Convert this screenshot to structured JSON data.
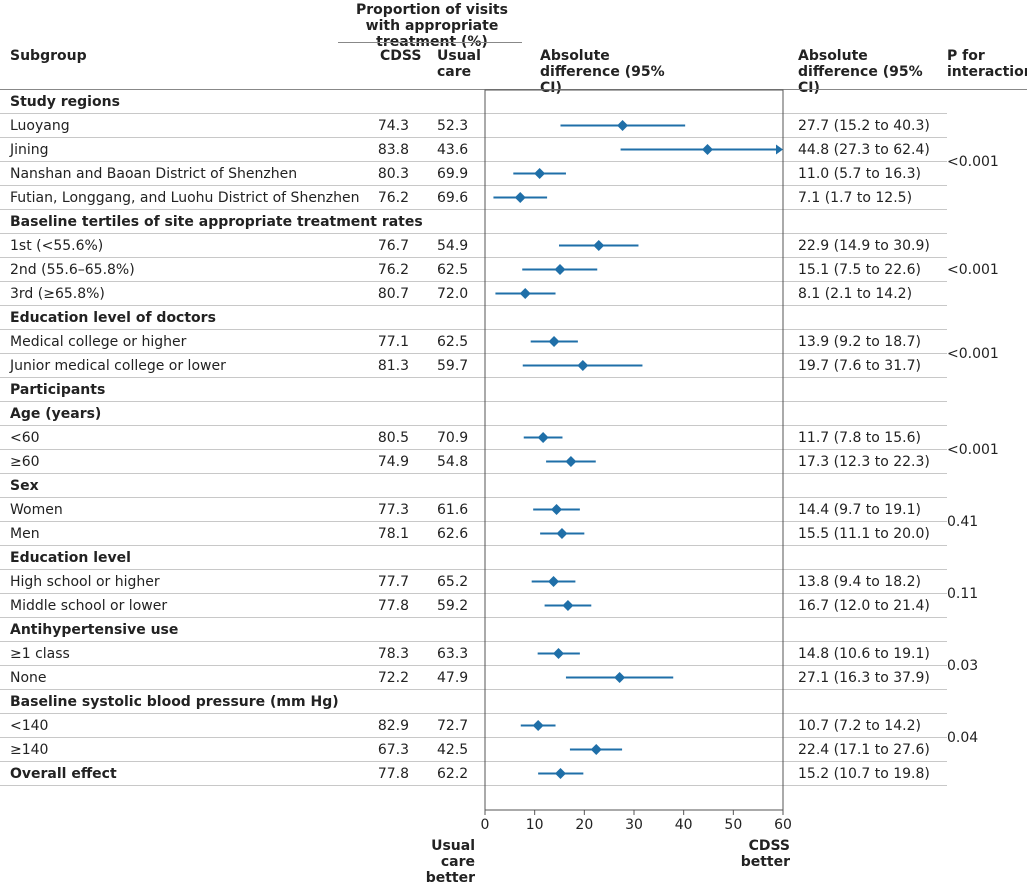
{
  "header": {
    "group_title": "Proportion of visits with appropriate treatment (%)",
    "subgroup": "Subgroup",
    "cdss": "CDSS",
    "usual_care": "Usual care",
    "abs_diff_plot": "Absolute difference (95% CI)",
    "abs_diff_col": "Absolute difference (95% CI)",
    "p_interaction": "P for interaction"
  },
  "rows": [
    {
      "label": "Study regions",
      "heading": true
    },
    {
      "label": "Luoyang",
      "cdss": "74.3",
      "usual": "52.3",
      "text": "27.7 (15.2 to 40.3)"
    },
    {
      "label": "Jining",
      "cdss": "83.8",
      "usual": "43.6",
      "text": "44.8 (27.3 to 62.4)"
    },
    {
      "label": "Nanshan and Baoan District of Shenzhen",
      "cdss": "80.3",
      "usual": "69.9",
      "text": "11.0 (5.7 to 16.3)"
    },
    {
      "label": "Futian, Longgang, and Luohu District of Shenzhen",
      "cdss": "76.2",
      "usual": "69.6",
      "text": "7.1 (1.7 to 12.5)"
    },
    {
      "label": "Baseline tertiles of site appropriate treatment rates",
      "heading": true
    },
    {
      "label": "1st (<55.6%)",
      "cdss": "76.7",
      "usual": "54.9",
      "text": "22.9 (14.9 to 30.9)"
    },
    {
      "label": "2nd (55.6–65.8%)",
      "cdss": "76.2",
      "usual": "62.5",
      "text": "15.1 (7.5 to 22.6)"
    },
    {
      "label": "3rd (≥65.8%)",
      "cdss": "80.7",
      "usual": "72.0",
      "text": "8.1 (2.1 to 14.2)"
    },
    {
      "label": "Education level of doctors",
      "heading": true
    },
    {
      "label": "Medical college or higher",
      "cdss": "77.1",
      "usual": "62.5",
      "text": "13.9 (9.2 to 18.7)"
    },
    {
      "label": "Junior medical college or lower",
      "cdss": "81.3",
      "usual": "59.7",
      "text": "19.7 (7.6 to 31.7)"
    },
    {
      "label": "Participants",
      "heading": true
    },
    {
      "label": "Age (years)",
      "heading": true
    },
    {
      "label": "<60",
      "cdss": "80.5",
      "usual": "70.9",
      "text": "11.7 (7.8 to 15.6)"
    },
    {
      "label": "≥60",
      "cdss": "74.9",
      "usual": "54.8",
      "text": "17.3 (12.3 to 22.3)"
    },
    {
      "label": "Sex",
      "heading": true
    },
    {
      "label": "Women",
      "cdss": "77.3",
      "usual": "61.6",
      "text": "14.4 (9.7 to 19.1)"
    },
    {
      "label": "Men",
      "cdss": "78.1",
      "usual": "62.6",
      "text": "15.5 (11.1 to 20.0)"
    },
    {
      "label": "Education level",
      "heading": true
    },
    {
      "label": "High school or higher",
      "cdss": "77.7",
      "usual": "65.2",
      "text": "13.8 (9.4 to 18.2)"
    },
    {
      "label": "Middle school or lower",
      "cdss": "77.8",
      "usual": "59.2",
      "text": "16.7 (12.0 to 21.4)"
    },
    {
      "label": "Antihypertensive use",
      "heading": true
    },
    {
      "label": "≥1 class",
      "cdss": "78.3",
      "usual": "63.3",
      "text": "14.8 (10.6 to 19.1)"
    },
    {
      "label": "None",
      "cdss": "72.2",
      "usual": "47.9",
      "text": "27.1 (16.3 to 37.9)"
    },
    {
      "label": "Baseline systolic blood pressure (mm Hg)",
      "heading": true
    },
    {
      "label": "<140",
      "cdss": "82.9",
      "usual": "72.7",
      "text": "10.7 (7.2 to 14.2)"
    },
    {
      "label": "≥140",
      "cdss": "67.3",
      "usual": "42.5",
      "text": "22.4 (17.1 to 27.6)"
    },
    {
      "label": "Overall effect",
      "cdss": "77.8",
      "usual": "62.2",
      "text": "15.2 (10.7 to 19.8)",
      "bold": true
    }
  ],
  "p_values": [
    {
      "value": "<0.001",
      "first": 1,
      "last": 4
    },
    {
      "value": "<0.001",
      "first": 6,
      "last": 8
    },
    {
      "value": "<0.001",
      "first": 10,
      "last": 11
    },
    {
      "value": "<0.001",
      "first": 14,
      "last": 15
    },
    {
      "value": "0.41",
      "first": 17,
      "last": 18
    },
    {
      "value": "0.11",
      "first": 20,
      "last": 21
    },
    {
      "value": "0.03",
      "first": 23,
      "last": 24
    },
    {
      "value": "0.04",
      "first": 26,
      "last": 27
    }
  ],
  "footer": {
    "usual_care_better": "Usual care better",
    "cdss_better": "CDSS better"
  },
  "colors": {
    "marker": "#1f6fa8",
    "frame": "#555555",
    "rule": "#c8c8c8"
  },
  "chart_data": {
    "type": "scatter",
    "title": "",
    "xlabel": "",
    "ylabel": "",
    "xlim": [
      0,
      60
    ],
    "xticks": [
      "0",
      "10",
      "20",
      "30",
      "40",
      "50",
      "60"
    ],
    "series": [
      {
        "points": [
          {
            "row": 1,
            "est": 27.7,
            "lo": 15.2,
            "hi": 40.3
          },
          {
            "row": 2,
            "est": 44.8,
            "lo": 27.3,
            "hi": 62.4,
            "clipped_right": true
          },
          {
            "row": 3,
            "est": 11.0,
            "lo": 5.7,
            "hi": 16.3
          },
          {
            "row": 4,
            "est": 7.1,
            "lo": 1.7,
            "hi": 12.5
          },
          {
            "row": 6,
            "est": 22.9,
            "lo": 14.9,
            "hi": 30.9
          },
          {
            "row": 7,
            "est": 15.1,
            "lo": 7.5,
            "hi": 22.6
          },
          {
            "row": 8,
            "est": 8.1,
            "lo": 2.1,
            "hi": 14.2
          },
          {
            "row": 10,
            "est": 13.9,
            "lo": 9.2,
            "hi": 18.7
          },
          {
            "row": 11,
            "est": 19.7,
            "lo": 7.6,
            "hi": 31.7
          },
          {
            "row": 14,
            "est": 11.7,
            "lo": 7.8,
            "hi": 15.6
          },
          {
            "row": 15,
            "est": 17.3,
            "lo": 12.3,
            "hi": 22.3
          },
          {
            "row": 17,
            "est": 14.4,
            "lo": 9.7,
            "hi": 19.1
          },
          {
            "row": 18,
            "est": 15.5,
            "lo": 11.1,
            "hi": 20.0
          },
          {
            "row": 20,
            "est": 13.8,
            "lo": 9.4,
            "hi": 18.2
          },
          {
            "row": 21,
            "est": 16.7,
            "lo": 12.0,
            "hi": 21.4
          },
          {
            "row": 23,
            "est": 14.8,
            "lo": 10.6,
            "hi": 19.1
          },
          {
            "row": 24,
            "est": 27.1,
            "lo": 16.3,
            "hi": 37.9
          },
          {
            "row": 26,
            "est": 10.7,
            "lo": 7.2,
            "hi": 14.2
          },
          {
            "row": 27,
            "est": 22.4,
            "lo": 17.1,
            "hi": 27.6
          },
          {
            "row": 28,
            "est": 15.2,
            "lo": 10.7,
            "hi": 19.8
          }
        ]
      }
    ]
  }
}
